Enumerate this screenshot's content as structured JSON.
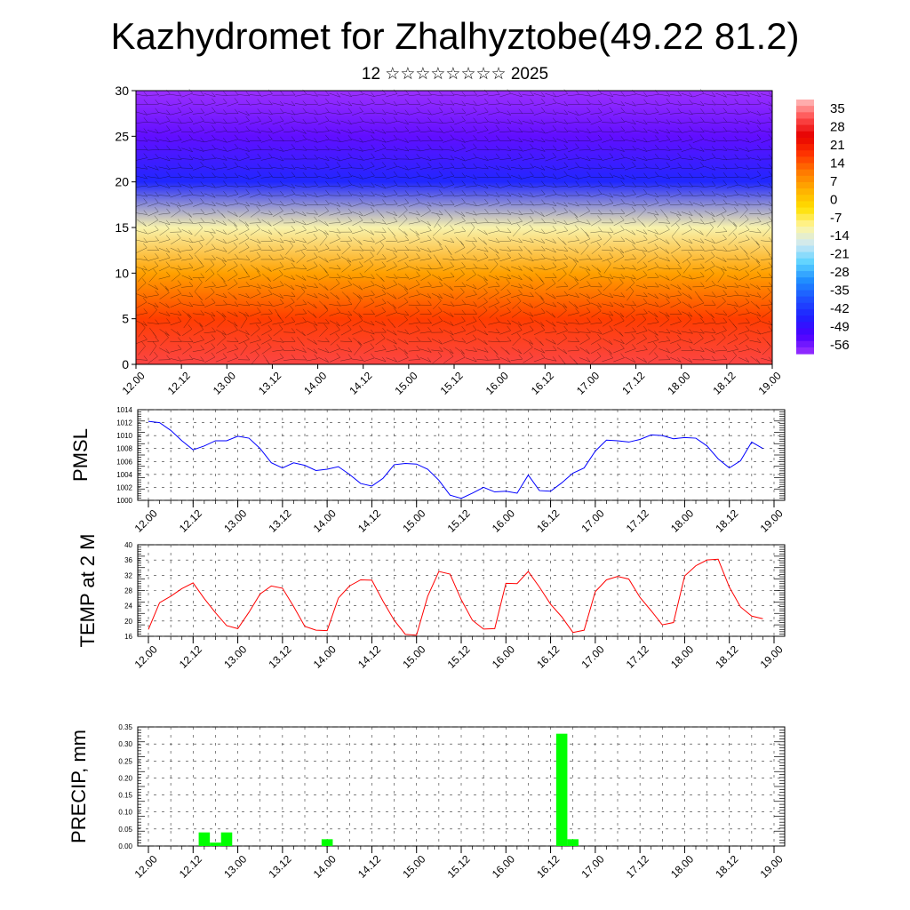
{
  "header": {
    "title": "Kazhydromet for Zhalhyztobe(49.22 81.2)",
    "subtitle": "12 ☆☆☆☆☆☆☆☆ 2025"
  },
  "colors": {
    "pmsl_line": "#0000ff",
    "temp_line": "#ff0000",
    "precip_bar": "#00ff00",
    "colormap": [
      "#ffbfbf",
      "#ff5050",
      "#e60000",
      "#ff3300",
      "#ff7a00",
      "#ffb000",
      "#ffe000",
      "#fff5a0",
      "#cde8f5",
      "#5ad2ff",
      "#1e8cff",
      "#1e50ff",
      "#2020ff",
      "#4a00ff",
      "#9b30ff"
    ]
  },
  "chart_data": [
    {
      "type": "heatmap",
      "xlabel": "",
      "ylabel": "",
      "ylim": [
        0,
        30
      ],
      "yticks": [
        0,
        5,
        10,
        15,
        20,
        25,
        30
      ],
      "x_tick_labels": [
        "12.00",
        "12.12",
        "13.00",
        "13.12",
        "14.00",
        "14.12",
        "15.00",
        "15.12",
        "16.00",
        "16.12",
        "17.00",
        "17.12",
        "18.00",
        "18.12",
        "19.00"
      ],
      "colorbar_labels": [
        "35",
        "28",
        "21",
        "14",
        "7",
        "0",
        "-7",
        "-14",
        "-21",
        "-28",
        "-35",
        "-42",
        "-49",
        "-56"
      ],
      "value_range": [
        -60,
        38
      ],
      "levels": [
        0,
        5,
        10,
        15,
        20,
        25,
        30
      ],
      "level_values": [
        30,
        16,
        5,
        -12,
        -45,
        -55,
        -60
      ],
      "overlay": "wind barbs",
      "grid": false
    },
    {
      "type": "line",
      "ylabel": "PMSL",
      "ylim": [
        1000,
        1014
      ],
      "yticks": [
        1000,
        1002,
        1004,
        1006,
        1008,
        1010,
        1012,
        1014
      ],
      "x_tick_labels": [
        "12.00",
        "12.12",
        "13.00",
        "13.12",
        "14.00",
        "14.12",
        "15.00",
        "15.12",
        "16.00",
        "16.12",
        "17.00",
        "17.12",
        "18.00",
        "18.12",
        "19.00"
      ],
      "x_range": [
        0,
        168
      ],
      "grid": true,
      "series": [
        {
          "x": [
            0,
            3,
            6,
            9,
            12,
            15,
            18,
            21,
            24,
            27,
            30,
            33,
            36,
            39,
            42,
            45,
            48,
            51,
            54,
            57,
            60,
            63,
            66,
            69,
            72,
            75,
            78,
            81,
            84,
            87,
            90,
            93,
            96,
            99,
            102,
            105,
            108,
            111,
            114,
            117,
            120,
            123,
            126,
            129,
            132,
            135,
            138,
            141,
            144,
            147,
            150,
            153,
            156,
            159,
            162,
            165
          ],
          "values": [
            1012.2,
            1012.0,
            1010.8,
            1009.2,
            1007.8,
            1008.4,
            1009.2,
            1009.2,
            1009.9,
            1009.6,
            1008.0,
            1005.8,
            1005.0,
            1005.8,
            1005.4,
            1004.6,
            1004.8,
            1005.2,
            1004.0,
            1002.6,
            1002.2,
            1003.4,
            1005.5,
            1005.7,
            1005.6,
            1004.8,
            1003.1,
            1000.8,
            1000.3,
            1001.1,
            1002.0,
            1001.3,
            1001.4,
            1001.1,
            1003.9,
            1001.5,
            1001.4,
            1002.7,
            1004.2,
            1005.0,
            1007.6,
            1009.3,
            1009.2,
            1009.0,
            1009.4,
            1010.1,
            1010.0,
            1009.5,
            1009.7,
            1009.6,
            1008.4,
            1006.4,
            1005.0,
            1006.1,
            1009.0,
            1008.0
          ]
        }
      ]
    },
    {
      "type": "line",
      "ylabel": "TEMP at 2 M",
      "ylim": [
        16,
        40
      ],
      "yticks": [
        16,
        20,
        24,
        28,
        32,
        36,
        40
      ],
      "x_tick_labels": [
        "12.00",
        "12.12",
        "13.00",
        "13.12",
        "14.00",
        "14.12",
        "15.00",
        "15.12",
        "16.00",
        "16.12",
        "17.00",
        "17.12",
        "18.00",
        "18.12",
        "19.00"
      ],
      "x_range": [
        0,
        168
      ],
      "grid": true,
      "series": [
        {
          "x": [
            0,
            3,
            6,
            9,
            12,
            15,
            18,
            21,
            24,
            27,
            30,
            33,
            36,
            39,
            42,
            45,
            48,
            51,
            54,
            57,
            60,
            63,
            66,
            69,
            72,
            75,
            78,
            81,
            84,
            87,
            90,
            93,
            96,
            99,
            102,
            105,
            108,
            111,
            114,
            117,
            120,
            123,
            126,
            129,
            132,
            135,
            138,
            141,
            144,
            147,
            150,
            153,
            156,
            159,
            162,
            165
          ],
          "values": [
            17.8,
            24.8,
            26.5,
            28.5,
            30.0,
            25.9,
            22.2,
            18.8,
            18.0,
            22.3,
            27.1,
            29.2,
            28.6,
            23.8,
            18.6,
            17.6,
            17.5,
            26.0,
            29.2,
            30.8,
            30.7,
            25.2,
            20.2,
            16.5,
            16.3,
            26.5,
            33.0,
            32.3,
            25.6,
            20.2,
            17.9,
            18.0,
            29.9,
            29.8,
            33.0,
            28.9,
            24.4,
            21.1,
            17.0,
            17.6,
            27.7,
            30.8,
            31.7,
            31.0,
            26.2,
            22.7,
            19.0,
            19.6,
            31.8,
            34.5,
            36.0,
            36.2,
            28.9,
            23.7,
            21.3,
            20.6
          ]
        }
      ]
    },
    {
      "type": "bar",
      "ylabel": "PRECIP, mm",
      "ylim": [
        0,
        0.35
      ],
      "yticks": [
        0.0,
        0.05,
        0.1,
        0.15,
        0.2,
        0.25,
        0.3,
        0.35
      ],
      "x_tick_labels": [
        "12.00",
        "12.12",
        "13.00",
        "13.12",
        "14.00",
        "14.12",
        "15.00",
        "15.12",
        "16.00",
        "16.12",
        "17.00",
        "17.12",
        "18.00",
        "18.12",
        "19.00"
      ],
      "x_range": [
        0,
        168
      ],
      "grid": true,
      "bars": [
        {
          "x": 15,
          "value": 0.04
        },
        {
          "x": 18,
          "value": 0.01
        },
        {
          "x": 21,
          "value": 0.04
        },
        {
          "x": 48,
          "value": 0.02
        },
        {
          "x": 111,
          "value": 0.33
        },
        {
          "x": 114,
          "value": 0.02
        }
      ]
    }
  ]
}
